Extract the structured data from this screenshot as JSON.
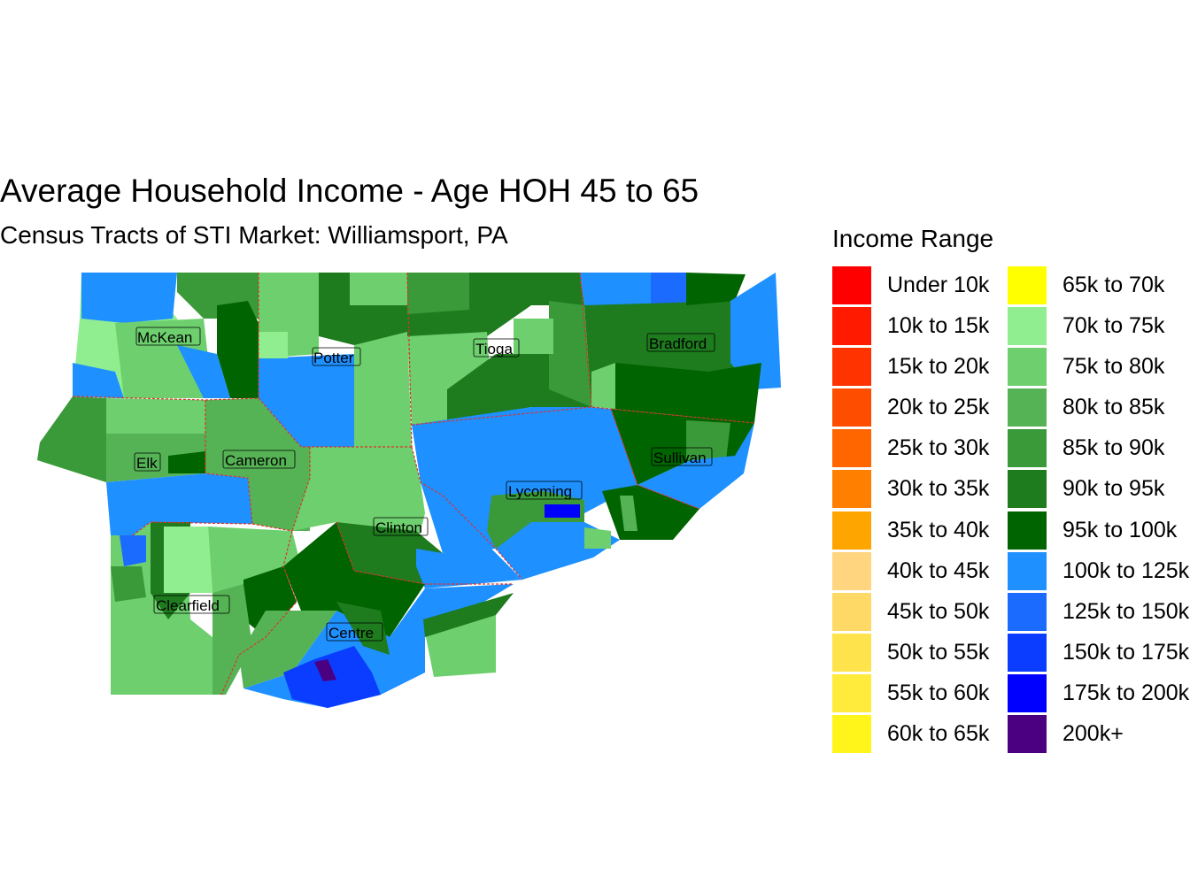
{
  "title": "Average Household Income - Age HOH 45 to 65",
  "subtitle": "Census Tracts of STI Market: Williamsport, PA",
  "legend": {
    "title": "Income Range",
    "items": [
      {
        "label": "Under 10k",
        "color": "#FF0000"
      },
      {
        "label": "10k to 15k",
        "color": "#FF1A00"
      },
      {
        "label": "15k to 20k",
        "color": "#FF3300"
      },
      {
        "label": "20k to 25k",
        "color": "#FF4D00"
      },
      {
        "label": "25k to 30k",
        "color": "#FF6600"
      },
      {
        "label": "30k to 35k",
        "color": "#FF8000"
      },
      {
        "label": "35k to 40k",
        "color": "#FFA500"
      },
      {
        "label": "40k to 45k",
        "color": "#FFD580"
      },
      {
        "label": "45k to 50k",
        "color": "#FFD966"
      },
      {
        "label": "50k to 55k",
        "color": "#FFE34D"
      },
      {
        "label": "55k to 60k",
        "color": "#FFEB3B"
      },
      {
        "label": "60k to 65k",
        "color": "#FFF51A"
      },
      {
        "label": "65k to 70k",
        "color": "#FFFF00"
      },
      {
        "label": "70k to 75k",
        "color": "#90EE90"
      },
      {
        "label": "75k to 80k",
        "color": "#6ECF6E"
      },
      {
        "label": "80k to 85k",
        "color": "#55B355"
      },
      {
        "label": "85k to 90k",
        "color": "#3A9A3A"
      },
      {
        "label": "90k to 95k",
        "color": "#1E7B1E"
      },
      {
        "label": "95k to 100k",
        "color": "#006400"
      },
      {
        "label": "100k to 125k",
        "color": "#1E90FF"
      },
      {
        "label": "125k to 150k",
        "color": "#1C6BFF"
      },
      {
        "label": "150k to 175k",
        "color": "#0A3DFF"
      },
      {
        "label": "175k to 200k",
        "color": "#0000FF"
      },
      {
        "label": "200k+",
        "color": "#4B0082"
      }
    ]
  },
  "counties": [
    {
      "name": "McKean",
      "income_range": "75k to 80k"
    },
    {
      "name": "Potter",
      "income_range": "100k to 125k"
    },
    {
      "name": "Tioga",
      "income_range": "75k to 80k"
    },
    {
      "name": "Bradford",
      "income_range": "95k to 100k"
    },
    {
      "name": "Elk",
      "income_range": "85k to 90k"
    },
    {
      "name": "Cameron",
      "income_range": "80k to 85k"
    },
    {
      "name": "Sullivan",
      "income_range": "100k to 125k"
    },
    {
      "name": "Lycoming",
      "income_range": "100k to 125k"
    },
    {
      "name": "Clinton",
      "income_range": "75k to 80k"
    },
    {
      "name": "Clearfield",
      "income_range": "75k to 80k"
    },
    {
      "name": "Centre",
      "income_range": "100k to 125k"
    }
  ],
  "colors": {
    "county_border": "#E0302A",
    "label_box_stroke": "#000000"
  }
}
